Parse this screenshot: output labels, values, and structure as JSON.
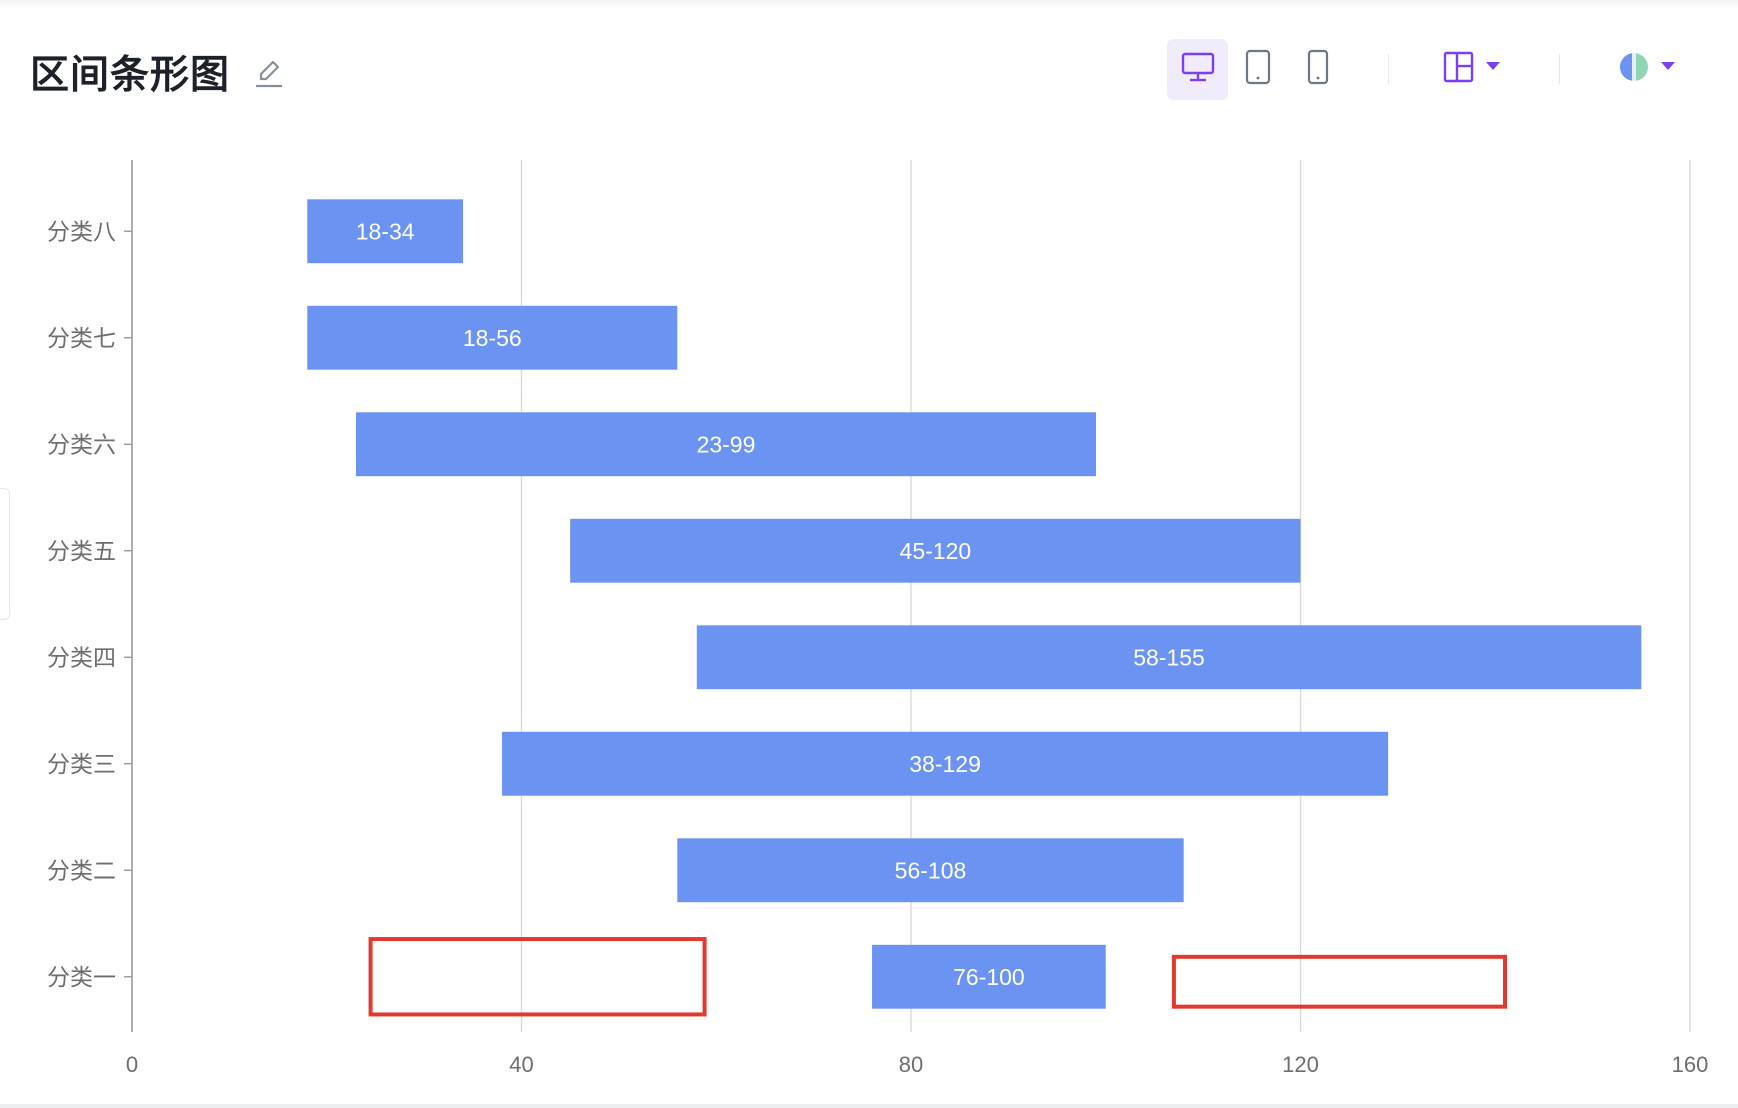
{
  "header": {
    "title": "区间条形图",
    "icons": {
      "edit": "edit-pencil-icon",
      "desktop": "desktop-icon",
      "tablet": "tablet-icon",
      "mobile": "mobile-icon",
      "layout": "layout-icon",
      "theme": "theme-icon"
    }
  },
  "colors": {
    "bar": "#6b93f2",
    "bar_label": "#ffffff",
    "axis_text": "#6e6e6e",
    "grid": "#d9d9d9",
    "axis": "#999999",
    "accent": "#7b3ff2",
    "highlight_box": "#e23a2e",
    "title": "#1d2129"
  },
  "chart_data": {
    "type": "bar",
    "orientation": "horizontal",
    "categories": [
      "分类一",
      "分类二",
      "分类三",
      "分类四",
      "分类五",
      "分类六",
      "分类七",
      "分类八"
    ],
    "ranges": [
      [
        76,
        100
      ],
      [
        56,
        108
      ],
      [
        38,
        129
      ],
      [
        58,
        155
      ],
      [
        45,
        120
      ],
      [
        23,
        99
      ],
      [
        18,
        56
      ],
      [
        18,
        34
      ]
    ],
    "bar_labels": [
      "76-100",
      "56-108",
      "38-129",
      "58-155",
      "45-120",
      "23-99",
      "18-56",
      "18-34"
    ],
    "xlim": [
      0,
      160
    ],
    "x_ticks": [
      "0",
      "40",
      "80",
      "120",
      "160"
    ],
    "grid": true,
    "annotations": [
      {
        "category": "分类一",
        "x_range": [
          24.5,
          58.8
        ],
        "type": "highlight-box"
      },
      {
        "category": "分类一",
        "x_range": [
          107,
          141
        ],
        "type": "highlight-box"
      }
    ]
  }
}
